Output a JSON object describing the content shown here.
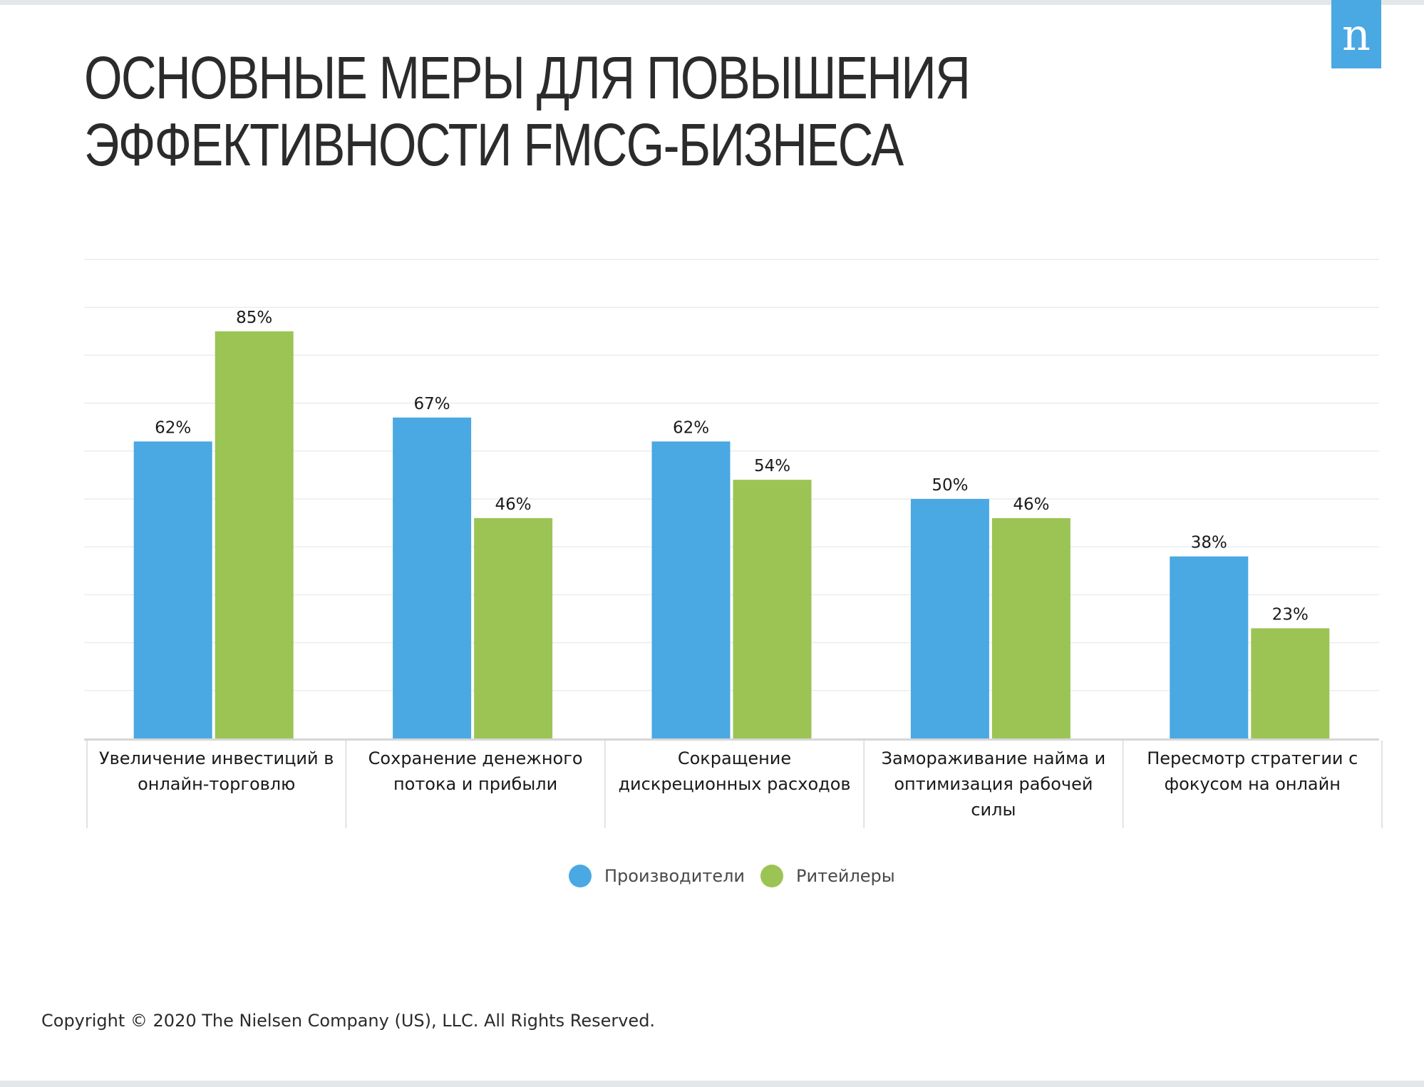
{
  "header": {
    "title_line1": "ОСНОВНЫЕ МЕРЫ ДЛЯ ПОВЫШЕНИЯ",
    "title_line2": "ЭФФЕКТИВНОСТИ FMCG-БИЗНЕСА",
    "logo_letter": "n"
  },
  "colors": {
    "series1": "#4aa8e3",
    "series2": "#9bc455",
    "logo": "#4aa8e3"
  },
  "chart_data": {
    "type": "bar",
    "title": "ОСНОВНЫЕ МЕРЫ ДЛЯ ПОВЫШЕНИЯ ЭФФЕКТИВНОСТИ FMCG-БИЗНЕСА",
    "categories": [
      [
        "Увеличение инвестиций в",
        "онлайн-торговлю"
      ],
      [
        "Сохранение денежного",
        "потока и прибыли"
      ],
      [
        "Сокращение",
        "дискреционных расходов"
      ],
      [
        "Замораживание найма и",
        "оптимизация рабочей",
        "силы"
      ],
      [
        "Пересмотр стратегии с",
        "фокусом на онлайн"
      ]
    ],
    "series": [
      {
        "name": "Производители",
        "values": [
          62,
          67,
          62,
          50,
          38
        ],
        "labels": [
          "62%",
          "67%",
          "62%",
          "50%",
          "38%"
        ]
      },
      {
        "name": "Ритейлеры",
        "values": [
          85,
          46,
          54,
          46,
          23
        ],
        "labels": [
          "85%",
          "46%",
          "54%",
          "46%",
          "23%"
        ]
      }
    ],
    "ylim": [
      0,
      100
    ],
    "gridlines": true,
    "xlabel": "",
    "ylabel": "",
    "legend_position": "bottom-center"
  },
  "footer": {
    "copyright": "Copyright © 2020 The Nielsen Company (US), LLC. All Rights Reserved."
  }
}
